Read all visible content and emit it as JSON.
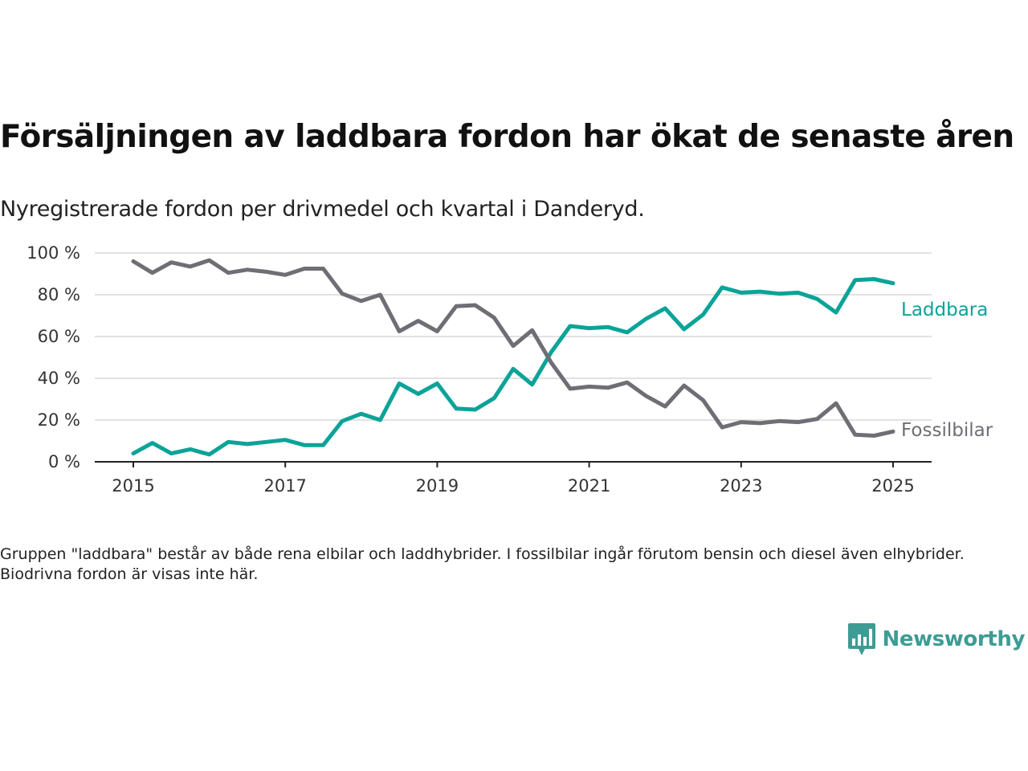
{
  "title": "Försäljningen av laddbara fordon har ökat de senaste åren",
  "subtitle": "Nyregistrerade fordon per drivmedel och kvartal i Danderyd.",
  "footnote": "Gruppen \"laddbara\" består av både rena elbilar och laddhybrider. I fossilbilar ingår förutom bensin och diesel även elhybrider. Biodrivna fordon är visas inte här.",
  "brand": {
    "name": "Newsworthy",
    "icon": "newsworthy-bar-chart-logo-icon",
    "color": "#3d9c94"
  },
  "chart_data": {
    "type": "line",
    "x_unit": "quarter",
    "x": [
      "2015 Q1",
      "2015 Q2",
      "2015 Q3",
      "2015 Q4",
      "2016 Q1",
      "2016 Q2",
      "2016 Q3",
      "2016 Q4",
      "2017 Q1",
      "2017 Q2",
      "2017 Q3",
      "2017 Q4",
      "2018 Q1",
      "2018 Q2",
      "2018 Q3",
      "2018 Q4",
      "2019 Q1",
      "2019 Q2",
      "2019 Q3",
      "2019 Q4",
      "2020 Q1",
      "2020 Q2",
      "2020 Q3",
      "2020 Q4",
      "2021 Q1",
      "2021 Q2",
      "2021 Q3",
      "2021 Q4",
      "2022 Q1",
      "2022 Q2",
      "2022 Q3",
      "2022 Q4",
      "2023 Q1",
      "2023 Q2",
      "2023 Q3",
      "2023 Q4",
      "2024 Q1",
      "2024 Q2",
      "2024 Q3",
      "2024 Q4",
      "2025 Q1"
    ],
    "series": [
      {
        "name": "Laddbara",
        "color": "#0ba398",
        "values": [
          4,
          9,
          4,
          6,
          3.5,
          9.5,
          8.5,
          9.5,
          10.5,
          8,
          8,
          19.5,
          23,
          20,
          37.5,
          32.5,
          37.5,
          25.5,
          25,
          30.5,
          44.5,
          37,
          52.5,
          65,
          64,
          64.5,
          62,
          68.5,
          73.5,
          63.5,
          70.5,
          83.5,
          81,
          81.5,
          80.5,
          81,
          78,
          71.5,
          87,
          87.5,
          85.5
        ]
      },
      {
        "name": "Fossilbilar",
        "color": "#6e6e75",
        "values": [
          96,
          90.5,
          95.5,
          93.5,
          96.5,
          90.5,
          92,
          91,
          89.5,
          92.5,
          92.5,
          80.5,
          77,
          80,
          62.5,
          67.5,
          62.5,
          74.5,
          75,
          69,
          55.5,
          63,
          47.5,
          35,
          36,
          35.5,
          38,
          31.5,
          26.5,
          36.5,
          29.5,
          16.5,
          19,
          18.5,
          19.5,
          19,
          20.5,
          28,
          13,
          12.5,
          14.5
        ]
      }
    ],
    "x_ticks": [
      "2015",
      "2017",
      "2019",
      "2021",
      "2023",
      "2025"
    ],
    "y_ticks": [
      "0 %",
      "20 %",
      "40 %",
      "60 %",
      "80 %",
      "100 %"
    ],
    "ylim": [
      0,
      100
    ],
    "grid": true,
    "legend": "inline labels at line ends"
  }
}
